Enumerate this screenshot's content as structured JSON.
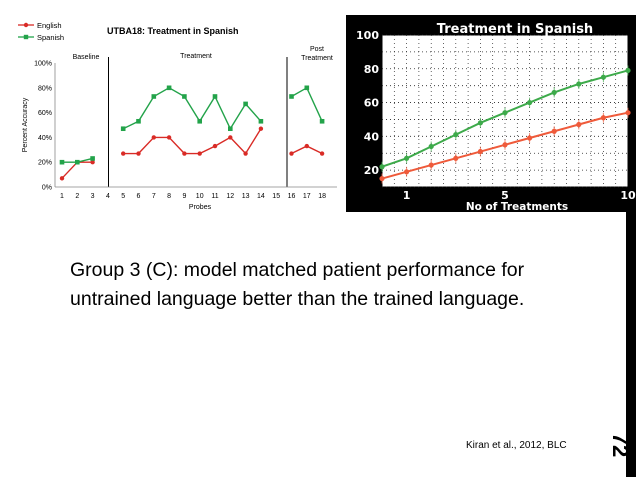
{
  "slide": {
    "body_text": "Group 3 (C): model matched patient performance for untrained language better than the trained language.",
    "citation": "Kiran et al., 2012, BLC",
    "slide_number": "72"
  },
  "colors": {
    "english": "#d92b26",
    "spanish": "#23a34a",
    "model_green": "#3daa4a",
    "model_red": "#ef5a3a"
  },
  "chart_data": [
    {
      "type": "line",
      "title": "UTBA18: Treatment in Spanish",
      "xlabel": "Probes",
      "ylabel": "Percent Accuracy",
      "ylim": [
        0,
        100
      ],
      "yticks": [
        "0%",
        "20%",
        "40%",
        "60%",
        "80%",
        "100%"
      ],
      "xticks": [
        "1",
        "2",
        "3",
        "4",
        "5",
        "6",
        "7",
        "8",
        "9",
        "10",
        "11",
        "12",
        "13",
        "14",
        "15",
        "16",
        "17",
        "18"
      ],
      "phases": [
        "Baseline",
        "Treatment",
        "Post Treatment"
      ],
      "legend": [
        "English",
        "Spanish"
      ],
      "series": [
        {
          "name": "English",
          "segments": [
            {
              "x": [
                1,
                2,
                3
              ],
              "y": [
                7,
                20,
                20
              ]
            },
            {
              "x": [
                5,
                6,
                7,
                8,
                9,
                10,
                11,
                12,
                13,
                14
              ],
              "y": [
                27,
                27,
                40,
                40,
                27,
                27,
                33,
                40,
                27,
                47
              ]
            },
            {
              "x": [
                16,
                17,
                18
              ],
              "y": [
                27,
                33,
                27
              ]
            }
          ]
        },
        {
          "name": "Spanish",
          "segments": [
            {
              "x": [
                1,
                2,
                3
              ],
              "y": [
                20,
                20,
                23
              ]
            },
            {
              "x": [
                5,
                6,
                7,
                8,
                9,
                10,
                11,
                12,
                13,
                14
              ],
              "y": [
                47,
                53,
                73,
                80,
                73,
                53,
                73,
                47,
                67,
                53
              ]
            },
            {
              "x": [
                16,
                17,
                18
              ],
              "y": [
                73,
                80,
                53
              ]
            }
          ]
        }
      ]
    },
    {
      "type": "line",
      "title": "Treatment in Spanish",
      "xlabel": "No of Treatments",
      "ylabel": "",
      "xlim": [
        0,
        10
      ],
      "ylim": [
        10,
        100
      ],
      "xticks": [
        "1",
        "5",
        "10"
      ],
      "yticks": [
        "20",
        "40",
        "60",
        "80",
        "100"
      ],
      "grid": true,
      "series": [
        {
          "name": "",
          "x": [
            0,
            1,
            2,
            3,
            4,
            5,
            6,
            7,
            8,
            9,
            10
          ],
          "y": [
            22,
            27,
            34,
            41,
            48,
            54,
            60,
            66,
            71,
            75,
            79
          ]
        },
        {
          "name": "",
          "x": [
            0,
            1,
            2,
            3,
            4,
            5,
            6,
            7,
            8,
            9,
            10
          ],
          "y": [
            15,
            19,
            23,
            27,
            31,
            35,
            39,
            43,
            47,
            51,
            54
          ]
        }
      ]
    }
  ]
}
